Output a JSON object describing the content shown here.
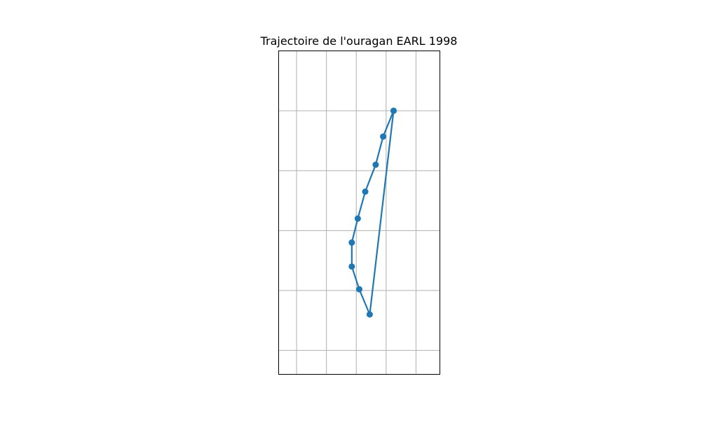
{
  "chart_data": {
    "type": "line",
    "title": "Trajectoire de l'ouragan EARL 1998",
    "xlabel": "",
    "ylabel": "",
    "grid": true,
    "legend": "none",
    "xlim": [
      -88.6,
      -83.2
    ],
    "ylim": [
      22.4,
      27.8
    ],
    "xgrid": [
      -88.0,
      -87.0,
      -86.0,
      -85.0,
      -84.0
    ],
    "ygrid": [
      22.8,
      23.8,
      24.8,
      25.8,
      26.8
    ],
    "series": [
      {
        "color": "#1f77b4",
        "marker": "circle",
        "x": [
          -84.75,
          -85.1,
          -85.35,
          -85.7,
          -85.95,
          -86.15,
          -86.15,
          -85.9,
          -85.55,
          -84.75
        ],
        "y": [
          26.8,
          26.37,
          25.9,
          25.45,
          25.0,
          24.6,
          24.2,
          23.82,
          23.4,
          26.8
        ]
      }
    ]
  }
}
